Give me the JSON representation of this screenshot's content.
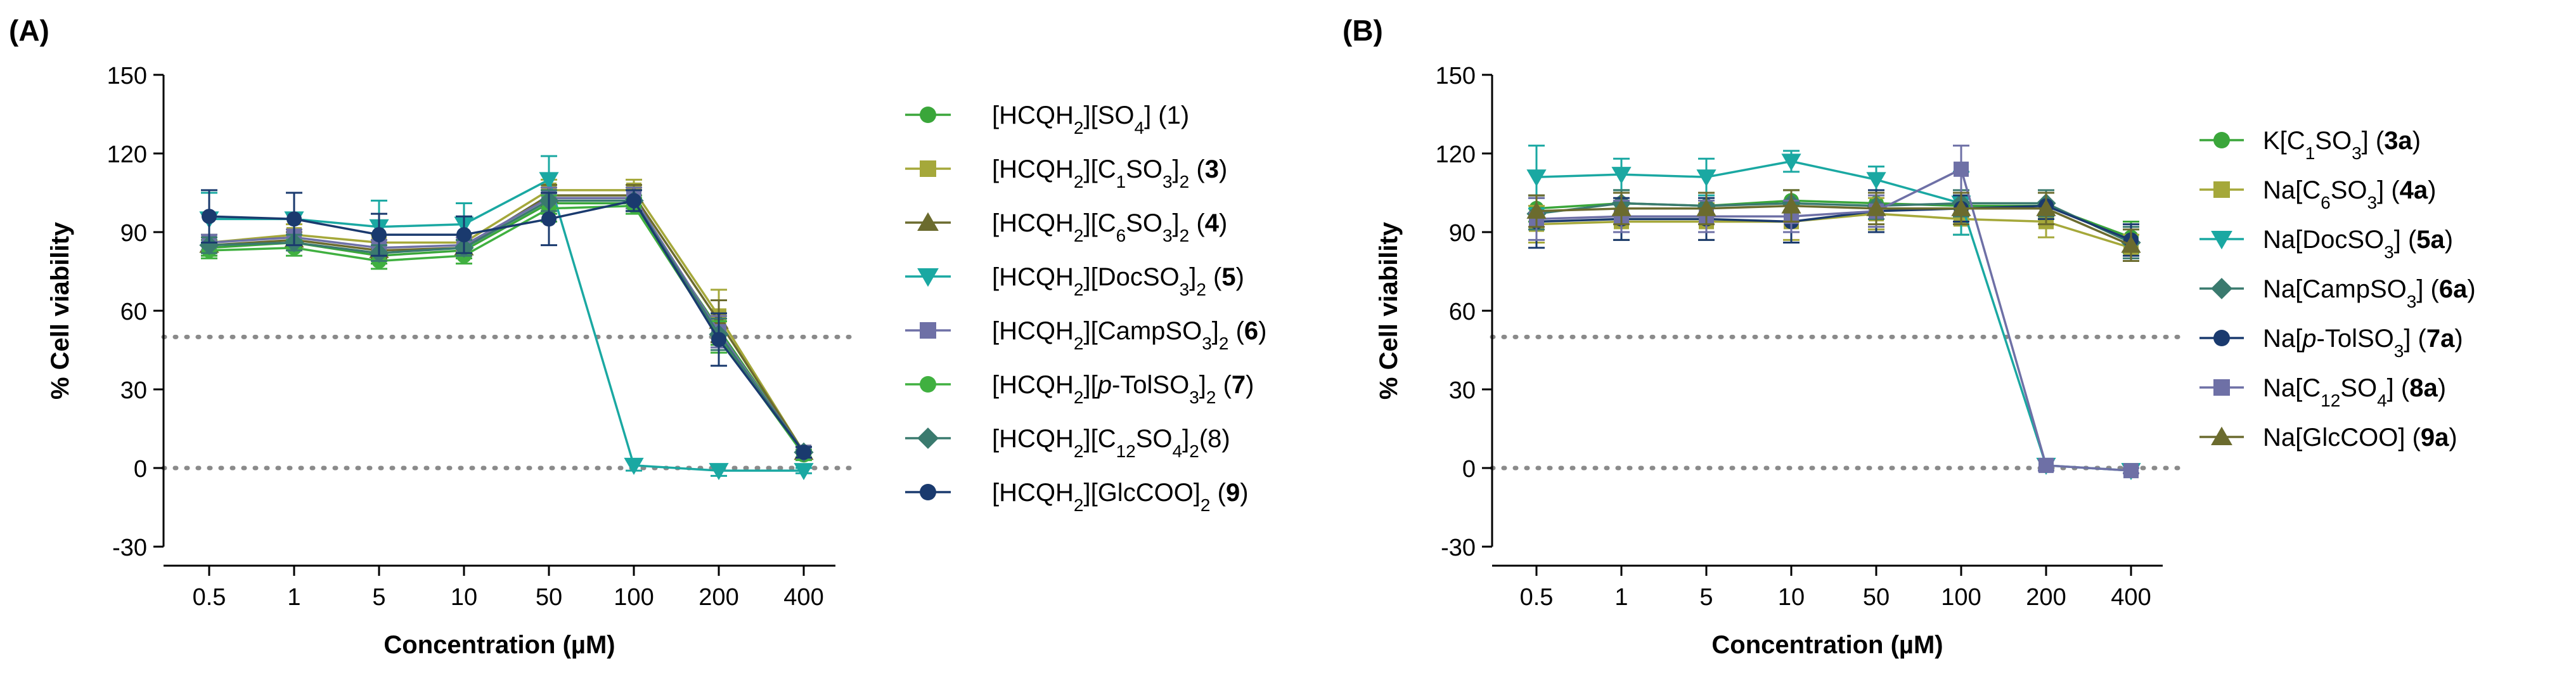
{
  "figure": {
    "panel_a_label": "(A)",
    "panel_b_label": "(B)"
  },
  "chart_data": [
    {
      "type": "line",
      "panel": "(A)",
      "xlabel": "Concentration (µM)",
      "ylabel": "% Cell viability",
      "categories": [
        "0.5",
        "1",
        "5",
        "10",
        "50",
        "100",
        "200",
        "400"
      ],
      "ylim": [
        -30,
        150
      ],
      "yticks": [
        -30,
        0,
        30,
        60,
        90,
        120,
        150
      ],
      "reference_lines": [
        50,
        0
      ],
      "grid": false,
      "legend_position": "right",
      "series": [
        {
          "name": "[HCQH2][SO4] (1)",
          "color": "#3aa63a",
          "marker": "circle",
          "legend": [
            [
              "[HCQH",
              ""
            ],
            [
              "2",
              "sub"
            ],
            [
              "][SO",
              ""
            ],
            [
              "4",
              "sub"
            ],
            [
              "] (1)",
              ""
            ]
          ],
          "values": [
            84,
            86,
            81,
            83,
            101,
            101,
            53,
            6
          ],
          "errors": [
            3,
            3,
            3,
            3,
            4,
            3,
            6,
            2
          ]
        },
        {
          "name": "[HCQH2][C1SO3]2 (3)",
          "color": "#a5a83a",
          "marker": "square",
          "legend": [
            [
              "[HCQH",
              ""
            ],
            [
              "2",
              "sub"
            ],
            [
              "][C",
              ""
            ],
            [
              "1",
              "sub"
            ],
            [
              "SO",
              ""
            ],
            [
              "3",
              "sub"
            ],
            [
              "]",
              ""
            ],
            [
              "2",
              "sub"
            ],
            [
              " (",
              ""
            ],
            [
              "3",
              "bold"
            ],
            [
              ")",
              ""
            ]
          ],
          "values": [
            86,
            89,
            86,
            86,
            106,
            106,
            58,
            6
          ],
          "errors": [
            3,
            4,
            3,
            3,
            4,
            4,
            10,
            2
          ]
        },
        {
          "name": "[HCQH2][C6SO3]2 (4)",
          "color": "#6b6b2e",
          "marker": "triangle-up",
          "legend": [
            [
              "[HCQH",
              ""
            ],
            [
              "2",
              "sub"
            ],
            [
              "][C",
              ""
            ],
            [
              "6",
              "sub"
            ],
            [
              "SO",
              ""
            ],
            [
              "3",
              "sub"
            ],
            [
              "]",
              ""
            ],
            [
              "2",
              "sub"
            ],
            [
              " (",
              ""
            ],
            [
              "4",
              "bold"
            ],
            [
              ")",
              ""
            ]
          ],
          "values": [
            85,
            87,
            83,
            84,
            104,
            104,
            56,
            6
          ],
          "errors": [
            3,
            3,
            3,
            3,
            4,
            4,
            8,
            2
          ]
        },
        {
          "name": "[HCQH2][DocSO3]2 (5)",
          "color": "#1aa8a2",
          "marker": "triangle-down",
          "legend": [
            [
              "[HCQH",
              ""
            ],
            [
              "2",
              "sub"
            ],
            [
              "][DocSO",
              ""
            ],
            [
              "3",
              "sub"
            ],
            [
              "]",
              ""
            ],
            [
              "2",
              "sub"
            ],
            [
              " (",
              ""
            ],
            [
              "5",
              "bold"
            ],
            [
              ")",
              ""
            ]
          ],
          "values": [
            95,
            95,
            92,
            93,
            110,
            1,
            -1,
            -1
          ],
          "errors": [
            10,
            10,
            10,
            8,
            9,
            2,
            2,
            1
          ]
        },
        {
          "name": "[HCQH2][CampSO3]2 (6)",
          "color": "#6e70a6",
          "marker": "square",
          "legend": [
            [
              "[HCQH",
              ""
            ],
            [
              "2",
              "sub"
            ],
            [
              "][CampSO",
              ""
            ],
            [
              "3",
              "sub"
            ],
            [
              "]",
              ""
            ],
            [
              "2",
              "sub"
            ],
            [
              " (",
              ""
            ],
            [
              "6",
              "bold"
            ],
            [
              ")",
              ""
            ]
          ],
          "values": [
            86,
            88,
            84,
            85,
            103,
            103,
            52,
            6
          ],
          "errors": [
            3,
            3,
            3,
            3,
            4,
            4,
            6,
            2
          ]
        },
        {
          "name": "[HCQH2][p-TolSO3]2 (7)",
          "color": "#40b040",
          "marker": "circle",
          "legend": [
            [
              "[HCQH",
              ""
            ],
            [
              "2",
              "sub"
            ],
            [
              "][",
              ""
            ],
            [
              "p",
              "italic"
            ],
            [
              "-TolSO",
              ""
            ],
            [
              "3",
              "sub"
            ],
            [
              "]",
              ""
            ],
            [
              "2",
              "sub"
            ],
            [
              " (",
              ""
            ],
            [
              "7",
              "bold"
            ],
            [
              ")",
              ""
            ]
          ],
          "values": [
            83,
            84,
            79,
            81,
            99,
            100,
            50,
            5
          ],
          "errors": [
            3,
            3,
            3,
            3,
            5,
            3,
            6,
            2
          ]
        },
        {
          "name": "[HCQH2][C12SO4]2(8)",
          "color": "#3a7a6e",
          "marker": "diamond",
          "legend": [
            [
              "[HCQH",
              ""
            ],
            [
              "2",
              "sub"
            ],
            [
              "][C",
              ""
            ],
            [
              "12",
              "sub"
            ],
            [
              "SO",
              ""
            ],
            [
              "4",
              "sub"
            ],
            [
              "]",
              ""
            ],
            [
              "2",
              "sub"
            ],
            [
              "(8)",
              ""
            ]
          ],
          "values": [
            85,
            86,
            82,
            84,
            102,
            102,
            51,
            6
          ],
          "errors": [
            3,
            3,
            3,
            3,
            4,
            4,
            6,
            2
          ]
        },
        {
          "name": "[HCQH2][GlcCOO]2 (9)",
          "color": "#1a3a6e",
          "marker": "circle",
          "legend": [
            [
              "[HCQH",
              ""
            ],
            [
              "2",
              "sub"
            ],
            [
              "][GlcCOO]",
              ""
            ],
            [
              "2",
              "sub"
            ],
            [
              " (",
              ""
            ],
            [
              "9",
              "bold"
            ],
            [
              ")",
              ""
            ]
          ],
          "values": [
            96,
            95,
            89,
            89,
            95,
            102,
            49,
            6
          ],
          "errors": [
            10,
            10,
            8,
            7,
            10,
            4,
            10,
            2
          ]
        }
      ]
    },
    {
      "type": "line",
      "panel": "(B)",
      "xlabel": "Concentration (µM)",
      "ylabel": "% Cell viability",
      "categories": [
        "0.5",
        "1",
        "5",
        "10",
        "50",
        "100",
        "200",
        "400"
      ],
      "ylim": [
        -30,
        150
      ],
      "yticks": [
        -30,
        0,
        30,
        60,
        90,
        120,
        150
      ],
      "reference_lines": [
        50,
        0
      ],
      "grid": false,
      "legend_position": "right",
      "series": [
        {
          "name": "K[C1SO3] (3a)",
          "color": "#3aa63a",
          "marker": "circle",
          "legend": [
            [
              "K[C",
              ""
            ],
            [
              "1",
              "sub"
            ],
            [
              "SO",
              ""
            ],
            [
              "3",
              "sub"
            ],
            [
              "] (",
              ""
            ],
            [
              "3a",
              "bold"
            ],
            [
              ")",
              ""
            ]
          ],
          "values": [
            99,
            101,
            100,
            102,
            101,
            100,
            100,
            88
          ],
          "errors": [
            5,
            5,
            5,
            4,
            4,
            4,
            5,
            6
          ]
        },
        {
          "name": "Na[C6SO3] (4a)",
          "color": "#a5a83a",
          "marker": "square",
          "legend": [
            [
              "Na[C",
              ""
            ],
            [
              "6",
              "sub"
            ],
            [
              "SO",
              ""
            ],
            [
              "3",
              "sub"
            ],
            [
              "] (",
              ""
            ],
            [
              "4a",
              "bold"
            ],
            [
              ")",
              ""
            ]
          ],
          "values": [
            93,
            94,
            94,
            94,
            97,
            95,
            94,
            84
          ],
          "errors": [
            7,
            7,
            7,
            7,
            6,
            6,
            6,
            5
          ]
        },
        {
          "name": "Na[DocSO3] (5a)",
          "color": "#1aa8a2",
          "marker": "triangle-down",
          "legend": [
            [
              "Na[DocSO",
              ""
            ],
            [
              "3",
              "sub"
            ],
            [
              "] (",
              ""
            ],
            [
              "5a",
              "bold"
            ],
            [
              ")",
              ""
            ]
          ],
          "values": [
            111,
            112,
            111,
            117,
            110,
            101,
            1,
            -1
          ],
          "errors": [
            12,
            6,
            7,
            4,
            5,
            12,
            2,
            1
          ]
        },
        {
          "name": "Na[CampSO3] (6a)",
          "color": "#3a7a6e",
          "marker": "diamond",
          "legend": [
            [
              "Na[CampSO",
              ""
            ],
            [
              "3",
              "sub"
            ],
            [
              "] (",
              ""
            ],
            [
              "6a",
              "bold"
            ],
            [
              ")",
              ""
            ]
          ],
          "values": [
            97,
            101,
            100,
            101,
            100,
            101,
            101,
            86
          ],
          "errors": [
            6,
            5,
            5,
            5,
            5,
            5,
            5,
            6
          ]
        },
        {
          "name": "Na[p-TolSO3] (7a)",
          "color": "#1a3a6e",
          "marker": "circle",
          "legend": [
            [
              "Na[",
              ""
            ],
            [
              "p",
              "italic"
            ],
            [
              "-TolSO",
              ""
            ],
            [
              "3",
              "sub"
            ],
            [
              "] (",
              ""
            ],
            [
              "7a",
              "bold"
            ],
            [
              ")",
              ""
            ]
          ],
          "values": [
            94,
            95,
            95,
            94,
            98,
            99,
            100,
            87
          ],
          "errors": [
            10,
            8,
            8,
            8,
            8,
            5,
            5,
            6
          ]
        },
        {
          "name": "Na[C12SO4] (8a)",
          "color": "#6e70a6",
          "marker": "square",
          "legend": [
            [
              "Na[C",
              ""
            ],
            [
              "12",
              "sub"
            ],
            [
              "SO",
              ""
            ],
            [
              "4",
              "sub"
            ],
            [
              "] (",
              ""
            ],
            [
              "8a",
              "bold"
            ],
            [
              ")",
              ""
            ]
          ],
          "values": [
            95,
            96,
            96,
            96,
            98,
            114,
            1,
            -1
          ],
          "errors": [
            8,
            6,
            6,
            6,
            6,
            9,
            2,
            1
          ]
        },
        {
          "name": "Na[GlcCOO] (9a)",
          "color": "#6b6b2e",
          "marker": "triangle-up",
          "legend": [
            [
              "Na[GlcCOO] (",
              ""
            ],
            [
              "9a",
              "bold"
            ],
            [
              ")",
              ""
            ]
          ],
          "values": [
            98,
            99,
            99,
            100,
            99,
            99,
            99,
            85
          ],
          "errors": [
            6,
            6,
            6,
            6,
            6,
            6,
            6,
            6
          ]
        }
      ]
    }
  ]
}
